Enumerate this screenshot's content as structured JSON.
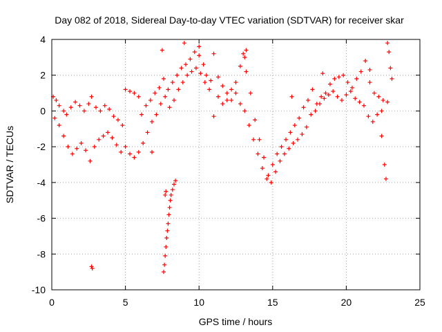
{
  "chart_data": {
    "type": "scatter",
    "title": "Day 082 of 2018, Sidereal Day-to-day VTEC variation (SDTVAR) for receiver skar",
    "xlabel": "GPS time / hours",
    "ylabel": "SDTVAR / TECUs",
    "xlim": [
      0,
      25
    ],
    "ylim": [
      -10,
      4
    ],
    "xticks": [
      0,
      5,
      10,
      15,
      20,
      25
    ],
    "xtick_labels": [
      "0",
      "5",
      "10",
      "15",
      "20",
      "25"
    ],
    "yticks": [
      -10,
      -8,
      -6,
      -4,
      -2,
      0,
      2,
      4
    ],
    "ytick_labels": [
      "-10",
      "-8",
      "-6",
      "-4",
      "-2",
      "0",
      "2",
      "4"
    ],
    "grid": true,
    "marker": "+",
    "marker_color": "#ff0000",
    "series": [
      {
        "name": "main-band-upper",
        "points": [
          [
            0.1,
            0.8
          ],
          [
            0.3,
            0.6
          ],
          [
            0.5,
            0.3
          ],
          [
            0.8,
            0.0
          ],
          [
            1.0,
            -0.2
          ],
          [
            1.3,
            0.2
          ],
          [
            1.6,
            0.5
          ],
          [
            1.9,
            0.3
          ],
          [
            2.2,
            0.0
          ],
          [
            2.5,
            0.4
          ],
          [
            2.7,
            0.8
          ],
          [
            3.0,
            0.2
          ],
          [
            3.3,
            0.0
          ],
          [
            3.6,
            0.3
          ],
          [
            3.9,
            0.1
          ],
          [
            4.2,
            -0.3
          ],
          [
            4.5,
            -0.5
          ],
          [
            4.8,
            -0.8
          ],
          [
            5.0,
            1.2
          ],
          [
            5.3,
            1.1
          ],
          [
            5.6,
            1.0
          ],
          [
            5.9,
            0.8
          ],
          [
            6.1,
            -0.2
          ],
          [
            6.4,
            0.3
          ],
          [
            6.7,
            0.6
          ],
          [
            7.0,
            1.0
          ],
          [
            7.3,
            1.3
          ],
          [
            7.6,
            1.8
          ],
          [
            7.9,
            1.2
          ],
          [
            8.2,
            1.6
          ],
          [
            8.5,
            2.0
          ],
          [
            8.8,
            2.4
          ],
          [
            9.1,
            2.6
          ],
          [
            9.4,
            2.9
          ],
          [
            9.7,
            3.3
          ],
          [
            10.0,
            3.1
          ],
          [
            10.3,
            2.6
          ],
          [
            10.5,
            2.0
          ],
          [
            10.8,
            1.7
          ],
          [
            11.0,
            3.2
          ],
          [
            11.3,
            1.9
          ],
          [
            11.6,
            1.4
          ],
          [
            11.9,
            1.0
          ],
          [
            12.2,
            0.6
          ],
          [
            12.5,
            1.0
          ],
          [
            12.8,
            2.5
          ],
          [
            13.0,
            3.2
          ],
          [
            13.2,
            2.2
          ],
          [
            13.5,
            1.0
          ],
          [
            13.8,
            -0.5
          ],
          [
            14.1,
            -1.6
          ],
          [
            14.4,
            -2.6
          ],
          [
            14.7,
            -3.6
          ],
          [
            15.0,
            -3.0
          ],
          [
            15.3,
            -2.4
          ],
          [
            15.6,
            -2.0
          ],
          [
            15.9,
            -1.6
          ],
          [
            16.2,
            -1.2
          ],
          [
            16.5,
            -0.8
          ],
          [
            16.8,
            -0.4
          ],
          [
            17.1,
            0.2
          ],
          [
            17.4,
            0.6
          ],
          [
            17.7,
            1.2
          ],
          [
            18.0,
            0.4
          ],
          [
            18.3,
            0.8
          ],
          [
            18.6,
            1.0
          ],
          [
            18.9,
            1.5
          ],
          [
            19.2,
            1.8
          ],
          [
            19.5,
            1.9
          ],
          [
            19.8,
            2.0
          ],
          [
            20.1,
            1.6
          ],
          [
            20.4,
            1.3
          ],
          [
            20.7,
            1.8
          ],
          [
            21.0,
            2.2
          ],
          [
            21.3,
            2.8
          ],
          [
            21.6,
            1.6
          ],
          [
            21.9,
            1.0
          ],
          [
            22.2,
            0.8
          ],
          [
            22.5,
            0.6
          ],
          [
            22.8,
            0.5
          ]
        ]
      },
      {
        "name": "main-band-lower",
        "points": [
          [
            0.2,
            -0.4
          ],
          [
            0.5,
            -0.8
          ],
          [
            0.8,
            -1.4
          ],
          [
            1.1,
            -2.0
          ],
          [
            1.4,
            -2.4
          ],
          [
            1.7,
            -2.1
          ],
          [
            2.0,
            -1.8
          ],
          [
            2.3,
            -2.2
          ],
          [
            2.6,
            -2.8
          ],
          [
            2.9,
            -2.0
          ],
          [
            3.2,
            -1.6
          ],
          [
            3.5,
            -1.4
          ],
          [
            3.8,
            -1.2
          ],
          [
            4.1,
            -1.5
          ],
          [
            4.4,
            -1.9
          ],
          [
            4.7,
            -2.3
          ],
          [
            5.0,
            -2.0
          ],
          [
            5.3,
            -2.4
          ],
          [
            5.6,
            -2.6
          ],
          [
            5.9,
            -2.3
          ],
          [
            6.2,
            -1.8
          ],
          [
            6.5,
            -1.2
          ],
          [
            6.8,
            -0.6
          ],
          [
            7.1,
            -0.2
          ],
          [
            7.4,
            0.4
          ],
          [
            7.7,
            0.8
          ],
          [
            8.0,
            0.2
          ],
          [
            8.3,
            0.6
          ],
          [
            8.6,
            1.2
          ],
          [
            8.9,
            1.6
          ],
          [
            9.2,
            2.0
          ],
          [
            9.5,
            2.2
          ],
          [
            9.8,
            2.4
          ],
          [
            10.1,
            2.1
          ],
          [
            10.4,
            1.6
          ],
          [
            10.7,
            1.2
          ],
          [
            11.0,
            -0.3
          ],
          [
            11.3,
            0.8
          ],
          [
            11.6,
            0.4
          ],
          [
            11.9,
            0.6
          ],
          [
            12.2,
            1.2
          ],
          [
            12.5,
            1.6
          ],
          [
            12.8,
            0.4
          ],
          [
            13.1,
            0.0
          ],
          [
            13.4,
            -0.8
          ],
          [
            13.7,
            -1.6
          ],
          [
            14.0,
            -2.4
          ],
          [
            14.3,
            -3.2
          ],
          [
            14.6,
            -3.8
          ],
          [
            14.9,
            -4.0
          ],
          [
            15.2,
            -3.4
          ],
          [
            15.5,
            -2.8
          ],
          [
            15.8,
            -2.4
          ],
          [
            16.1,
            -2.1
          ],
          [
            16.4,
            -1.8
          ],
          [
            16.7,
            -1.6
          ],
          [
            17.0,
            -1.3
          ],
          [
            17.3,
            -0.9
          ],
          [
            17.6,
            -0.2
          ],
          [
            17.9,
            0.0
          ],
          [
            18.2,
            0.4
          ],
          [
            18.5,
            0.7
          ],
          [
            18.8,
            0.9
          ],
          [
            19.1,
            1.1
          ],
          [
            19.4,
            0.8
          ],
          [
            19.7,
            0.6
          ],
          [
            20.0,
            0.9
          ],
          [
            20.3,
            1.1
          ],
          [
            20.6,
            0.7
          ],
          [
            20.9,
            0.5
          ],
          [
            21.2,
            0.3
          ],
          [
            21.5,
            -0.3
          ],
          [
            21.8,
            -0.6
          ],
          [
            22.1,
            -0.2
          ],
          [
            22.4,
            -1.4
          ],
          [
            22.6,
            -3.0
          ],
          [
            22.7,
            -3.8
          ]
        ]
      },
      {
        "name": "outlier-dip",
        "points": [
          [
            7.6,
            -9.0
          ],
          [
            7.65,
            -8.6
          ],
          [
            7.7,
            -8.1
          ],
          [
            7.75,
            -7.6
          ],
          [
            7.8,
            -7.1
          ],
          [
            7.85,
            -6.7
          ],
          [
            7.9,
            -6.3
          ],
          [
            7.95,
            -5.8
          ],
          [
            8.0,
            -5.4
          ],
          [
            8.05,
            -5.0
          ],
          [
            8.1,
            -4.7
          ],
          [
            8.2,
            -4.4
          ],
          [
            8.3,
            -4.1
          ],
          [
            8.4,
            -3.9
          ],
          [
            7.7,
            -4.7
          ],
          [
            7.75,
            -4.5
          ]
        ]
      },
      {
        "name": "isolated-points",
        "points": [
          [
            2.7,
            -8.7
          ],
          [
            2.75,
            -8.8
          ],
          [
            7.5,
            3.4
          ],
          [
            9.0,
            3.8
          ],
          [
            10.0,
            3.6
          ],
          [
            13.1,
            3.0
          ],
          [
            13.2,
            3.4
          ],
          [
            16.3,
            0.8
          ],
          [
            18.4,
            2.1
          ],
          [
            22.8,
            3.8
          ],
          [
            22.9,
            3.3
          ],
          [
            23.0,
            2.4
          ],
          [
            23.1,
            1.8
          ],
          [
            22.4,
            0.0
          ],
          [
            21.6,
            2.3
          ],
          [
            6.8,
            -2.3
          ]
        ]
      }
    ]
  }
}
